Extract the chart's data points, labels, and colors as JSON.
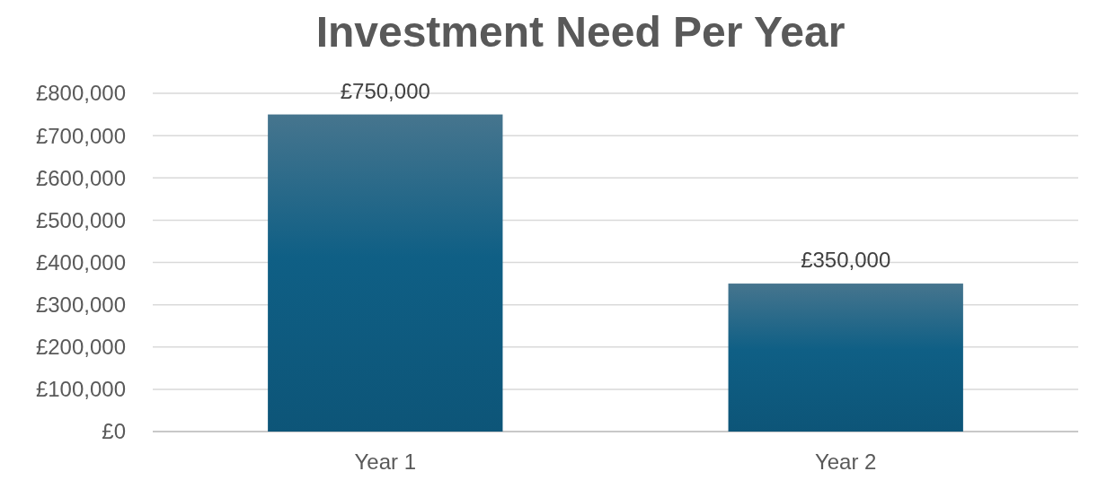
{
  "chart_data": {
    "type": "bar",
    "title": "Investment Need Per Year",
    "categories": [
      "Year 1",
      "Year 2"
    ],
    "values": [
      750000,
      350000
    ],
    "color": "#0f5f85",
    "value_labels": [
      "£750,000",
      "£350,000"
    ],
    "ylim": [
      0,
      800000
    ],
    "yticks": [
      {
        "value": 0,
        "label": "£0"
      },
      {
        "value": 100000,
        "label": "£100,000"
      },
      {
        "value": 200000,
        "label": "£200,000"
      },
      {
        "value": 300000,
        "label": "£300,000"
      },
      {
        "value": 400000,
        "label": "£400,000"
      },
      {
        "value": 500000,
        "label": "£500,000"
      },
      {
        "value": 600000,
        "label": "£600,000"
      },
      {
        "value": 700000,
        "label": "£700,000"
      },
      {
        "value": 800000,
        "label": "£800,000"
      }
    ],
    "grid": "y"
  }
}
